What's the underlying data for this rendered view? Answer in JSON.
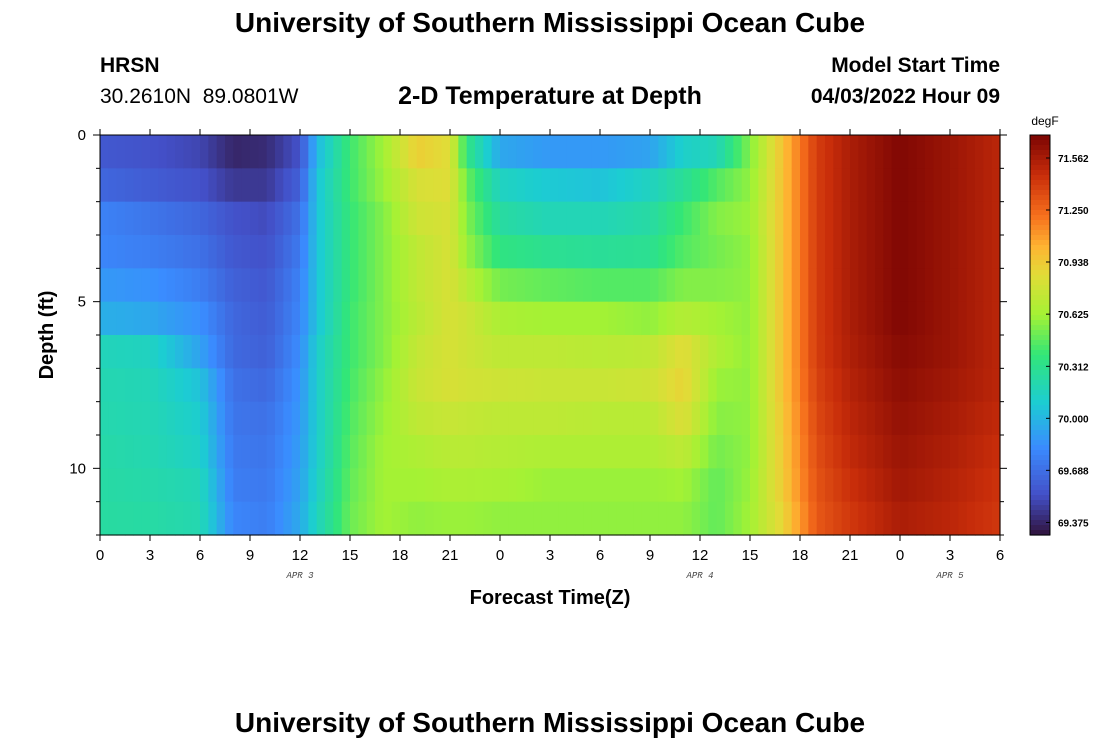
{
  "header": {
    "title": "University of Southern Mississippi Ocean Cube",
    "station": "HRSN",
    "coords": "30.2610N  89.0801W",
    "chart_title": "2-D Temperature at Depth",
    "start_label": "Model Start Time",
    "start_value": "04/03/2022 Hour 09"
  },
  "footer": {
    "title": "University of Southern Mississippi Ocean Cube"
  },
  "chart_data": {
    "type": "heatmap",
    "title": "2-D Temperature at Depth",
    "xlabel": "Forecast Time(Z)",
    "ylabel": "Depth (ft)",
    "x_hours_from_apr3_00z": [
      0,
      54
    ],
    "ylim": [
      0,
      12
    ],
    "y_inverted": true,
    "xtick_labels": [
      "0",
      "3",
      "6",
      "9",
      "12",
      "15",
      "18",
      "21",
      "0",
      "3",
      "6",
      "9",
      "12",
      "15",
      "18",
      "21",
      "0",
      "3",
      "6"
    ],
    "ytick_labels": [
      "0",
      "5",
      "10"
    ],
    "ytick_values": [
      0,
      5,
      10
    ],
    "date_labels": [
      {
        "label": "APR 3",
        "hour": 12
      },
      {
        "label": "APR 4",
        "hour": 36
      },
      {
        "label": "APR 5",
        "hour": 51
      }
    ],
    "depth_bands": [
      0,
      1,
      2,
      3,
      4,
      5,
      6,
      7,
      8,
      9,
      10,
      11
    ],
    "time_columns": [
      {
        "t": 0,
        "vals": [
          69.58,
          69.65,
          69.78,
          69.8,
          69.88,
          69.97,
          70.17,
          70.2,
          70.21,
          70.23,
          70.24,
          70.25
        ]
      },
      {
        "t": 3,
        "vals": [
          69.55,
          69.6,
          69.72,
          69.76,
          69.85,
          69.94,
          70.15,
          70.18,
          70.19,
          70.2,
          70.22,
          70.24
        ]
      },
      {
        "t": 6,
        "vals": [
          69.5,
          69.55,
          69.65,
          69.7,
          69.76,
          69.84,
          69.92,
          70.05,
          70.1,
          70.13,
          70.18,
          70.2
        ]
      },
      {
        "t": 8,
        "vals": [
          69.38,
          69.45,
          69.55,
          69.58,
          69.62,
          69.65,
          69.66,
          69.7,
          69.72,
          69.74,
          69.76,
          69.8
        ]
      },
      {
        "t": 10,
        "vals": [
          69.4,
          69.45,
          69.52,
          69.55,
          69.58,
          69.6,
          69.62,
          69.66,
          69.7,
          69.72,
          69.74,
          69.76
        ]
      },
      {
        "t": 12,
        "vals": [
          69.55,
          69.62,
          69.7,
          69.74,
          69.78,
          69.8,
          69.83,
          69.86,
          69.88,
          69.9,
          69.92,
          69.95
        ]
      },
      {
        "t": 13,
        "vals": [
          70.0,
          70.05,
          70.05,
          70.05,
          70.05,
          70.05,
          70.1,
          70.1,
          70.1,
          70.1,
          70.12,
          70.15
        ]
      },
      {
        "t": 15,
        "vals": [
          70.4,
          70.4,
          70.38,
          70.38,
          70.38,
          70.4,
          70.4,
          70.42,
          70.44,
          70.46,
          70.48,
          70.5
        ]
      },
      {
        "t": 17,
        "vals": [
          70.62,
          70.6,
          70.55,
          70.55,
          70.55,
          70.55,
          70.55,
          70.58,
          70.6,
          70.62,
          70.62,
          70.62
        ]
      },
      {
        "t": 19,
        "vals": [
          70.92,
          70.82,
          70.78,
          70.72,
          70.72,
          70.7,
          70.74,
          70.76,
          70.72,
          70.66,
          70.62,
          70.58
        ]
      },
      {
        "t": 21,
        "vals": [
          70.85,
          70.85,
          70.82,
          70.82,
          70.82,
          70.82,
          70.82,
          70.82,
          70.76,
          70.7,
          70.65,
          70.6
        ]
      },
      {
        "t": 22,
        "vals": [
          70.35,
          70.5,
          70.55,
          70.6,
          70.7,
          70.78,
          70.78,
          70.8,
          70.74,
          70.7,
          70.65,
          70.6
        ]
      },
      {
        "t": 24,
        "vals": [
          69.94,
          70.15,
          70.25,
          70.35,
          70.52,
          70.65,
          70.72,
          70.78,
          70.72,
          70.68,
          70.64,
          70.58
        ]
      },
      {
        "t": 27,
        "vals": [
          69.88,
          70.08,
          70.18,
          70.3,
          70.48,
          70.62,
          70.72,
          70.76,
          70.72,
          70.66,
          70.6,
          70.58
        ]
      },
      {
        "t": 30,
        "vals": [
          69.88,
          70.05,
          70.18,
          70.28,
          70.45,
          70.62,
          70.7,
          70.76,
          70.7,
          70.66,
          70.6,
          70.58
        ]
      },
      {
        "t": 33,
        "vals": [
          69.92,
          70.15,
          70.24,
          70.3,
          70.45,
          70.58,
          70.72,
          70.78,
          70.7,
          70.66,
          70.6,
          70.58
        ]
      },
      {
        "t": 35,
        "vals": [
          70.12,
          70.28,
          70.4,
          70.45,
          70.55,
          70.68,
          70.86,
          70.9,
          70.84,
          70.72,
          70.62,
          70.58
        ]
      },
      {
        "t": 37,
        "vals": [
          70.18,
          70.45,
          70.55,
          70.52,
          70.55,
          70.62,
          70.66,
          70.6,
          70.56,
          70.52,
          70.48,
          70.48
        ]
      },
      {
        "t": 39,
        "vals": [
          70.55,
          70.58,
          70.6,
          70.58,
          70.58,
          70.58,
          70.58,
          70.58,
          70.58,
          70.58,
          70.6,
          70.62
        ]
      },
      {
        "t": 41,
        "vals": [
          70.98,
          70.98,
          70.98,
          70.98,
          70.98,
          70.98,
          70.98,
          70.98,
          70.96,
          70.95,
          70.94,
          70.9
        ]
      },
      {
        "t": 43,
        "vals": [
          71.4,
          71.4,
          71.4,
          71.4,
          71.4,
          71.4,
          71.4,
          71.38,
          71.36,
          71.34,
          71.32,
          71.3
        ]
      },
      {
        "t": 45,
        "vals": [
          71.55,
          71.55,
          71.55,
          71.55,
          71.55,
          71.55,
          71.54,
          71.52,
          71.5,
          71.48,
          71.45,
          71.42
        ]
      },
      {
        "t": 48,
        "vals": [
          71.68,
          71.68,
          71.68,
          71.68,
          71.68,
          71.68,
          71.66,
          71.64,
          71.62,
          71.6,
          71.58,
          71.55
        ]
      },
      {
        "t": 51,
        "vals": [
          71.6,
          71.6,
          71.6,
          71.6,
          71.6,
          71.6,
          71.6,
          71.58,
          71.56,
          71.54,
          71.52,
          71.5
        ]
      },
      {
        "t": 54,
        "vals": [
          71.5,
          71.5,
          71.5,
          71.5,
          71.5,
          71.5,
          71.5,
          71.5,
          71.48,
          71.46,
          71.44,
          71.42
        ]
      }
    ],
    "colorbar": {
      "unit": "degF",
      "labels": [
        "71.562",
        "71.250",
        "70.938",
        "70.625",
        "70.312",
        "70.000",
        "69.688",
        "69.375"
      ],
      "ticks": [
        71.562,
        71.25,
        70.938,
        70.625,
        70.312,
        70.0,
        69.688,
        69.375
      ],
      "range": [
        69.3,
        71.7
      ],
      "colormap": "turbo"
    }
  }
}
